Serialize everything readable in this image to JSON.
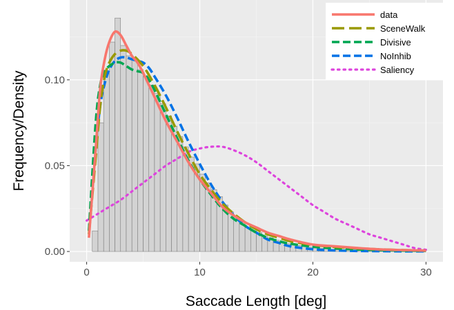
{
  "chart_data": {
    "type": "line",
    "title": "",
    "xlabel": "Saccade Length [deg]",
    "ylabel": "Frequency/Density",
    "xlim": [
      -1.5,
      31.5
    ],
    "ylim": [
      -0.006,
      0.1465
    ],
    "x_ticks": [
      0,
      10,
      20,
      30
    ],
    "x_tick_labels": [
      "0",
      "10",
      "20",
      "30"
    ],
    "y_ticks": [
      0.0,
      0.05,
      0.1
    ],
    "y_tick_labels": [
      "0.00",
      "0.05",
      "0.10"
    ],
    "grid": true,
    "legend_position": "top-right",
    "histogram": {
      "bin_width": 0.5,
      "bin_starts": [
        0.5,
        1.0,
        1.5,
        2.0,
        2.5,
        3.0,
        3.5,
        4.0,
        4.5,
        5.0,
        5.5,
        6.0,
        6.5,
        7.0,
        7.5,
        8.0,
        8.5,
        9.0,
        9.5,
        10.0,
        10.5,
        11.0,
        11.5,
        12.0,
        12.5,
        13.0,
        13.5,
        14.0,
        14.5,
        15.0,
        15.5,
        16.0,
        16.5,
        17.0,
        17.5,
        18.0,
        18.5,
        19.0,
        19.5,
        20.0,
        20.5,
        21.0,
        21.5,
        22.0,
        22.5,
        23.0,
        23.5,
        24.0,
        24.5,
        25.0,
        25.5,
        26.0,
        26.5,
        27.0,
        27.5,
        28.0,
        28.5,
        29.0,
        29.5
      ],
      "values": [
        0.012,
        0.075,
        0.105,
        0.122,
        0.136,
        0.12,
        0.114,
        0.112,
        0.106,
        0.102,
        0.097,
        0.092,
        0.086,
        0.079,
        0.073,
        0.067,
        0.061,
        0.055,
        0.051,
        0.045,
        0.04,
        0.036,
        0.032,
        0.027,
        0.023,
        0.02,
        0.017,
        0.014,
        0.012,
        0.011,
        0.009,
        0.008,
        0.0065,
        0.0055,
        0.0045,
        0.004,
        0.0035,
        0.003,
        0.0025,
        0.002,
        0.0018,
        0.0015,
        0.0012,
        0.001,
        0.0009,
        0.0008,
        0.0007,
        0.0006,
        0.0005,
        0.0004,
        0.0003,
        0.0003,
        0.0002,
        0.0002,
        0.0002,
        0.0001,
        0.0001,
        0.0001,
        0.0001
      ]
    },
    "series": [
      {
        "name": "data",
        "color": "#F8766D",
        "dash": "solid",
        "x": [
          0.2,
          0.8,
          1.2,
          1.6,
          2.0,
          2.5,
          3.0,
          3.5,
          4.0,
          4.5,
          5.0,
          6.0,
          7.0,
          8.0,
          9.0,
          10.0,
          11.0,
          12.0,
          13.0,
          14.0,
          15.0,
          16.0,
          17.0,
          18.0,
          20.0,
          22.0,
          24.0,
          26.0,
          28.0,
          30.0
        ],
        "y": [
          0.008,
          0.06,
          0.095,
          0.112,
          0.122,
          0.128,
          0.126,
          0.12,
          0.114,
          0.11,
          0.104,
          0.09,
          0.076,
          0.064,
          0.052,
          0.042,
          0.034,
          0.026,
          0.021,
          0.017,
          0.014,
          0.011,
          0.009,
          0.007,
          0.004,
          0.003,
          0.002,
          0.0012,
          0.0008,
          0.0005
        ]
      },
      {
        "name": "SceneWalk",
        "color": "#999900",
        "dash": "longdash",
        "x": [
          0.2,
          0.8,
          1.2,
          1.6,
          2.0,
          2.5,
          3.0,
          3.5,
          4.0,
          5.0,
          6.0,
          7.0,
          8.0,
          9.0,
          10.0,
          11.0,
          12.0,
          13.0,
          14.0,
          15.0,
          16.0,
          17.0,
          18.0,
          20.0,
          22.0,
          24.0,
          26.0,
          28.0,
          30.0
        ],
        "y": [
          0.01,
          0.055,
          0.085,
          0.102,
          0.11,
          0.115,
          0.117,
          0.117,
          0.115,
          0.108,
          0.097,
          0.084,
          0.07,
          0.057,
          0.045,
          0.036,
          0.028,
          0.022,
          0.017,
          0.013,
          0.01,
          0.008,
          0.006,
          0.0038,
          0.0026,
          0.0018,
          0.0012,
          0.0008,
          0.0005
        ]
      },
      {
        "name": "Divisive",
        "color": "#00A651",
        "dash": "dashed",
        "x": [
          0.2,
          0.8,
          1.2,
          1.6,
          2.0,
          2.5,
          3.0,
          3.5,
          4.0,
          4.5,
          5.0,
          5.5,
          6.0,
          7.0,
          8.0,
          9.0,
          10.0,
          11.0,
          12.0,
          13.0,
          14.0,
          15.0,
          16.0,
          17.0,
          18.0,
          20.0,
          22.0,
          24.0,
          26.0,
          28.0,
          30.0
        ],
        "y": [
          0.012,
          0.075,
          0.097,
          0.105,
          0.108,
          0.11,
          0.11,
          0.108,
          0.106,
          0.105,
          0.104,
          0.1,
          0.094,
          0.08,
          0.066,
          0.053,
          0.042,
          0.033,
          0.025,
          0.019,
          0.015,
          0.011,
          0.008,
          0.006,
          0.0045,
          0.0028,
          0.0018,
          0.0012,
          0.0008,
          0.0005,
          0.0003
        ]
      },
      {
        "name": "NoInhib",
        "color": "#0072E6",
        "dash": "dashed",
        "x": [
          0.2,
          0.8,
          1.2,
          1.6,
          2.0,
          2.5,
          3.0,
          3.5,
          4.0,
          4.5,
          5.0,
          5.5,
          6.0,
          7.0,
          8.0,
          9.0,
          10.0,
          11.0,
          12.0,
          13.0,
          14.0,
          15.0,
          16.0,
          17.0,
          18.0,
          20.0,
          22.0,
          24.0,
          26.0,
          28.0,
          30.0
        ],
        "y": [
          0.012,
          0.06,
          0.085,
          0.098,
          0.106,
          0.111,
          0.113,
          0.113,
          0.112,
          0.111,
          0.11,
          0.107,
          0.102,
          0.091,
          0.078,
          0.064,
          0.051,
          0.039,
          0.029,
          0.021,
          0.015,
          0.011,
          0.007,
          0.005,
          0.003,
          0.0013,
          0.0006,
          0.0003,
          0.0002,
          0.0001,
          0.0001
        ]
      },
      {
        "name": "Saliency",
        "color": "#DD44DD",
        "dash": "dotted",
        "x": [
          0,
          1,
          2,
          3,
          4,
          5,
          6,
          7,
          8,
          9,
          10,
          11,
          12,
          13,
          14,
          15,
          16,
          17,
          18,
          19,
          20,
          21,
          22,
          23,
          24,
          25,
          26,
          27,
          28,
          29,
          30
        ],
        "y": [
          0.018,
          0.022,
          0.026,
          0.03,
          0.035,
          0.04,
          0.045,
          0.05,
          0.054,
          0.058,
          0.06,
          0.061,
          0.061,
          0.059,
          0.056,
          0.052,
          0.047,
          0.042,
          0.037,
          0.032,
          0.027,
          0.023,
          0.019,
          0.016,
          0.013,
          0.01,
          0.008,
          0.006,
          0.004,
          0.002,
          0.001
        ]
      }
    ]
  }
}
